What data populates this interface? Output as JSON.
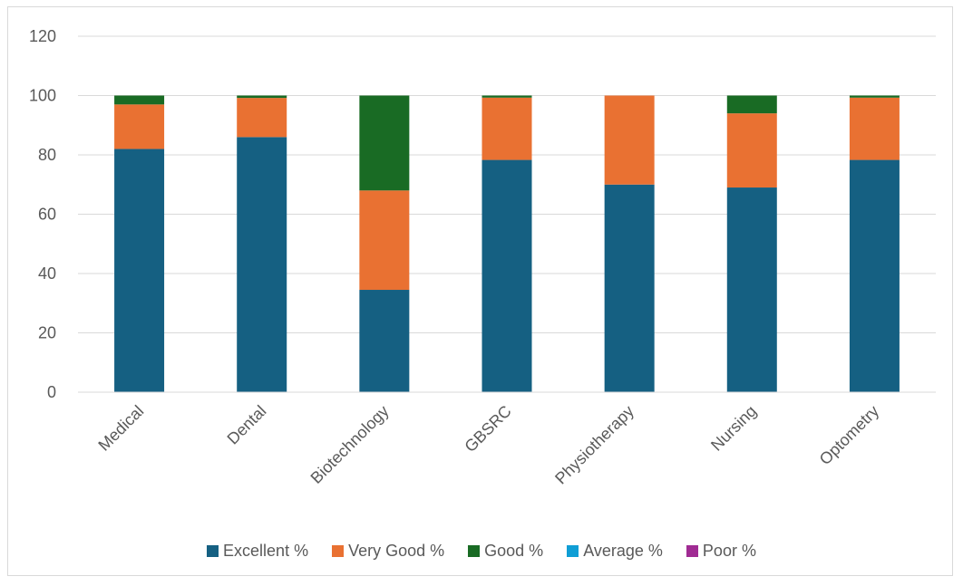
{
  "chart_data": {
    "type": "bar",
    "stacked": true,
    "title": "",
    "xlabel": "",
    "ylabel": "",
    "ylim": [
      0,
      120
    ],
    "yticks": [
      0,
      20,
      40,
      60,
      80,
      100,
      120
    ],
    "grid": true,
    "legend_position": "bottom",
    "categories": [
      "Medical",
      "Dental",
      "Biotechnology",
      "GBSRC",
      "Physiotherapy",
      "Nursing",
      "Optometry"
    ],
    "series": [
      {
        "name": "Excellent %",
        "color": "#156082",
        "values": [
          82,
          86,
          34.5,
          78.3,
          70,
          69,
          78.3
        ]
      },
      {
        "name": "Very Good %",
        "color": "#e97132",
        "values": [
          15,
          13.2,
          33.5,
          21,
          30,
          25,
          21
        ]
      },
      {
        "name": "Good %",
        "color": "#196b24",
        "values": [
          3,
          0.8,
          32,
          0.7,
          0,
          6,
          0.7
        ]
      },
      {
        "name": "Average %",
        "color": "#0f9ed5",
        "values": [
          0,
          0,
          0,
          0,
          0,
          0,
          0
        ]
      },
      {
        "name": "Poor %",
        "color": "#a02b93",
        "values": [
          0,
          0,
          0,
          0,
          0,
          0,
          0
        ]
      }
    ]
  }
}
